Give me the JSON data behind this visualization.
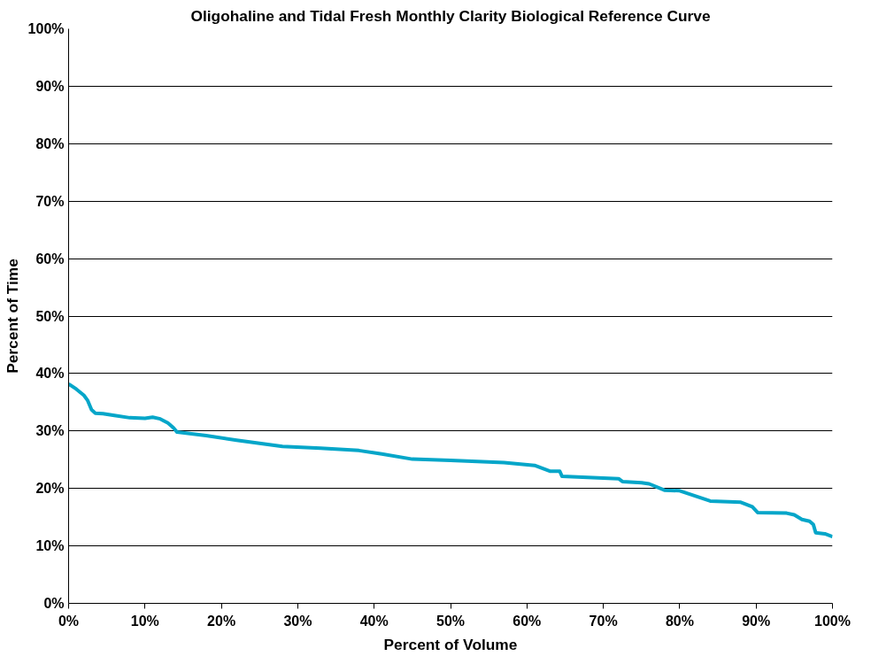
{
  "chart_data": {
    "type": "line",
    "title": "Oligohaline and Tidal Fresh Monthly Clarity Biological Reference Curve",
    "xlabel": "Percent of Volume",
    "ylabel": "Percent of Time",
    "x": [
      0,
      1,
      2,
      2.5,
      3,
      3.5,
      4.5,
      6,
      8,
      10,
      11,
      12,
      13,
      13.7,
      14.2,
      18,
      22,
      28,
      33,
      38,
      41,
      45,
      50,
      57,
      61,
      63,
      64.3,
      64.6,
      72,
      72.5,
      75,
      76,
      78,
      80,
      84,
      88,
      89.5,
      90.2,
      94,
      95,
      96,
      97,
      97.5,
      97.8,
      99,
      100
    ],
    "series": [
      {
        "color": "#05a6c9",
        "values": [
          38.2,
          37.3,
          36.2,
          35.3,
          33.7,
          33.1,
          33.0,
          32.7,
          32.3,
          32.2,
          32.4,
          32.1,
          31.4,
          30.6,
          29.8,
          29.2,
          28.4,
          27.3,
          27.0,
          26.6,
          26.0,
          25.1,
          24.9,
          24.5,
          24.0,
          23.0,
          23.0,
          22.1,
          21.7,
          21.2,
          21.0,
          20.8,
          19.7,
          19.6,
          17.8,
          17.6,
          16.8,
          15.8,
          15.7,
          15.4,
          14.6,
          14.3,
          13.7,
          12.3,
          12.1,
          11.6
        ]
      }
    ],
    "xlim": [
      0,
      100
    ],
    "ylim": [
      0,
      100
    ],
    "xticks": [
      {
        "value": 0,
        "label": "0%"
      },
      {
        "value": 10,
        "label": "10%"
      },
      {
        "value": 20,
        "label": "20%"
      },
      {
        "value": 30,
        "label": "30%"
      },
      {
        "value": 40,
        "label": "40%"
      },
      {
        "value": 50,
        "label": "50%"
      },
      {
        "value": 60,
        "label": "60%"
      },
      {
        "value": 70,
        "label": "70%"
      },
      {
        "value": 80,
        "label": "80%"
      },
      {
        "value": 90,
        "label": "90%"
      },
      {
        "value": 100,
        "label": "100%"
      }
    ],
    "yticks": [
      {
        "value": 0,
        "label": "0%"
      },
      {
        "value": 10,
        "label": "10%"
      },
      {
        "value": 20,
        "label": "20%"
      },
      {
        "value": 30,
        "label": "30%"
      },
      {
        "value": 40,
        "label": "40%"
      },
      {
        "value": 50,
        "label": "50%"
      },
      {
        "value": 60,
        "label": "60%"
      },
      {
        "value": 70,
        "label": "70%"
      },
      {
        "value": 80,
        "label": "80%"
      },
      {
        "value": 90,
        "label": "90%"
      },
      {
        "value": 100,
        "label": "100%"
      }
    ],
    "grid": "y",
    "line_style": "solid",
    "marker": "none"
  }
}
